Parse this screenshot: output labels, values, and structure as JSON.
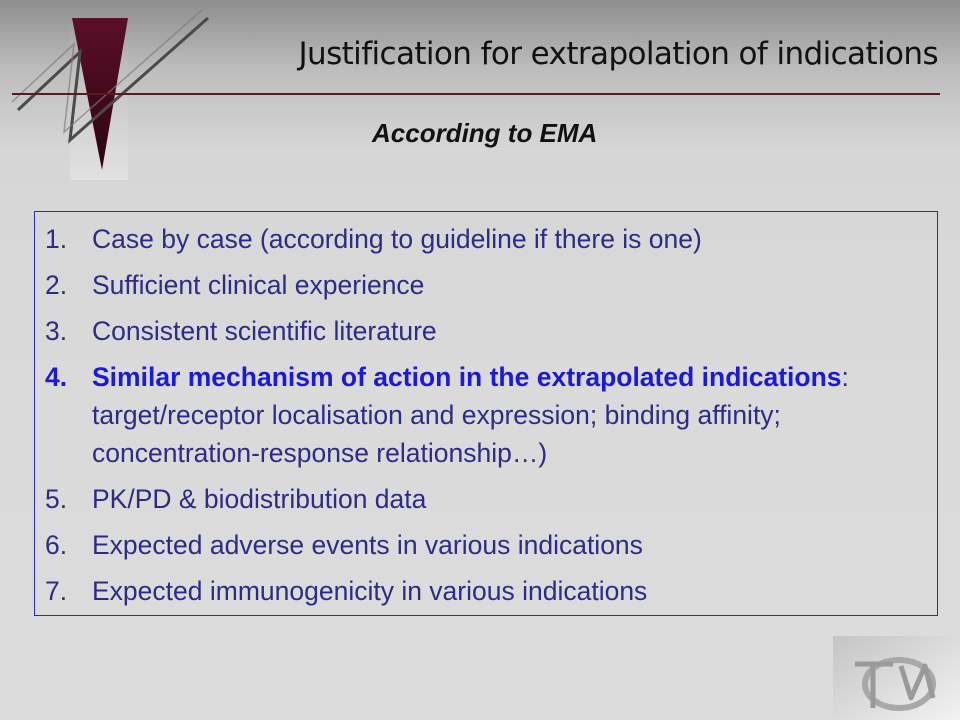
{
  "slide": {
    "title": "Justification for extrapolation of indications",
    "subtitle": "According to EMA",
    "items": [
      {
        "number": "1.",
        "text": "Case by case (according to guideline if there is one)"
      },
      {
        "number": "2.",
        "text": "Sufficient clinical experience"
      },
      {
        "number": "3.",
        "text": "Consistent scientific literature"
      },
      {
        "number": "4.",
        "bold_text": "Similar mechanism of action in the extrapolated indications",
        "text": ": target/receptor localisation and expression; binding affinity; concentration-response relationship…)"
      },
      {
        "number": "5.",
        "text": "PK/PD & biodistribution data"
      },
      {
        "number": "6.",
        "text": "Expected adverse events in various indications"
      },
      {
        "number": "7.",
        "text": "Expected immunogenicity in various indications"
      }
    ]
  },
  "colors": {
    "accent_dark_red": "#4a0a1e",
    "item_text": "#2c2c86",
    "highlight_blue": "#1a1adc",
    "box_border": "#2a2ac8"
  },
  "icons": {
    "header_logo": "triangle-zigzag-logo",
    "corner_logo": "dpm-monogram-logo"
  }
}
